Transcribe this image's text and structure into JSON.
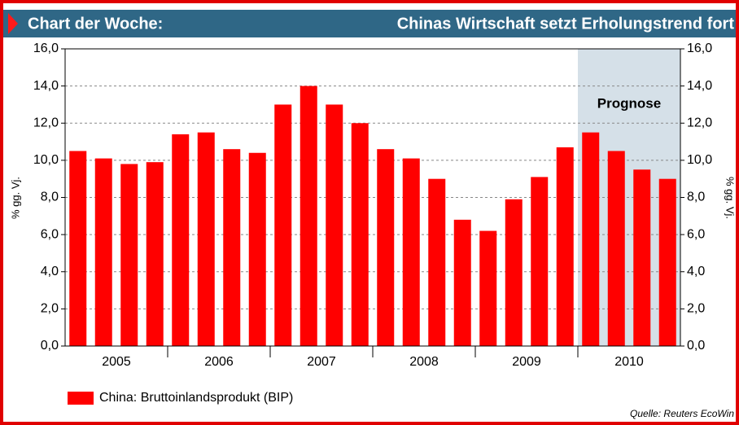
{
  "header": {
    "label": "Chart der Woche:",
    "title": "Chinas Wirtschaft setzt Erholungstrend fort"
  },
  "chart_data": {
    "type": "bar",
    "year_labels": [
      "2005",
      "2006",
      "2007",
      "2008",
      "2009",
      "2010"
    ],
    "values": [
      10.5,
      10.1,
      9.8,
      9.9,
      11.4,
      11.5,
      10.6,
      10.4,
      13.0,
      14.0,
      13.0,
      12.0,
      10.6,
      10.1,
      9.0,
      6.8,
      6.2,
      7.9,
      9.1,
      10.7,
      11.5,
      10.5,
      9.5,
      9.0
    ],
    "series_name": "China: Bruttoinlandsprodukt (BIP)",
    "color": "#ff0000",
    "ylim": [
      0,
      16
    ],
    "yticks": [
      {
        "value": 0,
        "label": "0,0"
      },
      {
        "value": 2,
        "label": "2,0"
      },
      {
        "value": 4,
        "label": "4,0"
      },
      {
        "value": 6,
        "label": "6,0"
      },
      {
        "value": 8,
        "label": "8,0"
      },
      {
        "value": 10,
        "label": "10,0"
      },
      {
        "value": 12,
        "label": "12,0"
      },
      {
        "value": 14,
        "label": "14,0"
      },
      {
        "value": 16,
        "label": "16,0"
      }
    ],
    "ylabel": "% gg. Vj.",
    "y2label": "% gg. Vj.",
    "annotation": "Prognose",
    "grid": true,
    "source": "Quelle: Reuters EcoWin"
  }
}
